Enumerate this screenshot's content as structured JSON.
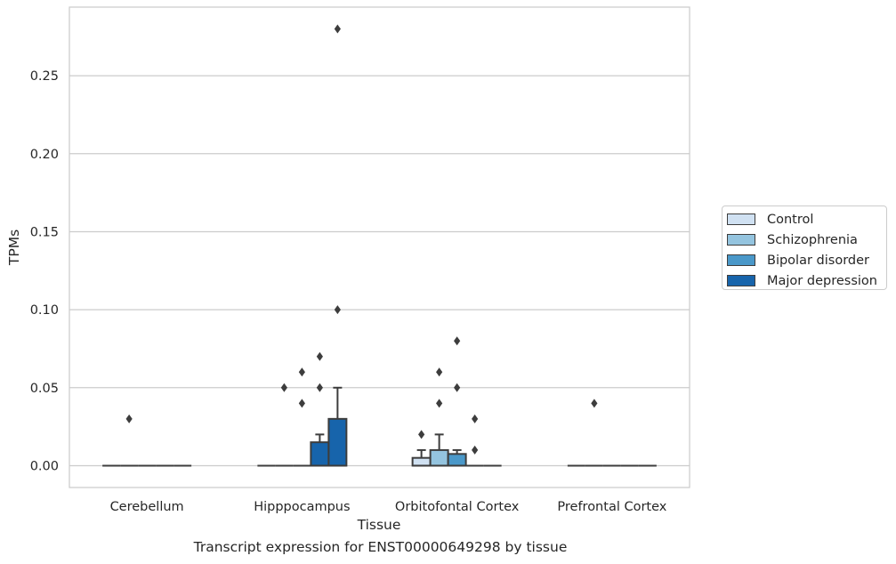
{
  "chart_data": {
    "type": "box",
    "title": "",
    "caption": "Transcript expression for ENST00000649298 by tissue",
    "xlabel": "Tissue",
    "ylabel": "TPMs",
    "ylim": [
      -0.014,
      0.294
    ],
    "yticks": [
      "0.00",
      "0.05",
      "0.10",
      "0.15",
      "0.20",
      "0.25"
    ],
    "ytick_values": [
      0,
      0.05,
      0.1,
      0.15,
      0.2,
      0.25
    ],
    "grid": "horizontal",
    "legend_position": "right",
    "categories": [
      "Cerebellum",
      "Hipppocampus",
      "Orbitofontal Cortex",
      "Prefrontal Cortex"
    ],
    "series": [
      {
        "name": "Control",
        "color": "#d0e1f2",
        "boxes": [
          {
            "q1": 0,
            "median": 0,
            "q3": 0,
            "whisker_low": 0,
            "whisker_high": 0,
            "outliers": []
          },
          {
            "q1": 0,
            "median": 0,
            "q3": 0,
            "whisker_low": 0,
            "whisker_high": 0,
            "outliers": []
          },
          {
            "q1": 0,
            "median": 0,
            "q3": 0.005,
            "whisker_low": 0,
            "whisker_high": 0.01,
            "outliers": [
              0.02
            ]
          },
          {
            "q1": 0,
            "median": 0,
            "q3": 0,
            "whisker_low": 0,
            "whisker_high": 0,
            "outliers": []
          }
        ]
      },
      {
        "name": "Schizophrenia",
        "color": "#94c4df",
        "boxes": [
          {
            "q1": 0,
            "median": 0,
            "q3": 0,
            "whisker_low": 0,
            "whisker_high": 0,
            "outliers": [
              0.03
            ]
          },
          {
            "q1": 0,
            "median": 0,
            "q3": 0,
            "whisker_low": 0,
            "whisker_high": 0,
            "outliers": [
              0.05
            ]
          },
          {
            "q1": 0,
            "median": 0,
            "q3": 0.01,
            "whisker_low": 0,
            "whisker_high": 0.02,
            "outliers": [
              0.04,
              0.06
            ]
          },
          {
            "q1": 0,
            "median": 0,
            "q3": 0,
            "whisker_low": 0,
            "whisker_high": 0,
            "outliers": [
              0.04
            ]
          }
        ]
      },
      {
        "name": "Bipolar disorder",
        "color": "#4a98c9",
        "boxes": [
          {
            "q1": 0,
            "median": 0,
            "q3": 0,
            "whisker_low": 0,
            "whisker_high": 0,
            "outliers": []
          },
          {
            "q1": 0,
            "median": 0,
            "q3": 0,
            "whisker_low": 0,
            "whisker_high": 0,
            "outliers": [
              0.04,
              0.06
            ]
          },
          {
            "q1": 0,
            "median": 0,
            "q3": 0.0075,
            "whisker_low": 0,
            "whisker_high": 0.01,
            "outliers": [
              0.05,
              0.08
            ]
          },
          {
            "q1": 0,
            "median": 0,
            "q3": 0,
            "whisker_low": 0,
            "whisker_high": 0,
            "outliers": []
          }
        ]
      },
      {
        "name": "Major depression",
        "color": "#1764ab",
        "boxes": [
          {
            "q1": 0,
            "median": 0,
            "q3": 0,
            "whisker_low": 0,
            "whisker_high": 0,
            "outliers": []
          },
          {
            "q1": 0,
            "median": 0,
            "q3": 0.015,
            "whisker_low": 0,
            "whisker_high": 0.02,
            "outliers": [
              0.05,
              0.07
            ]
          },
          {
            "q1": 0,
            "median": 0,
            "q3": 0,
            "whisker_low": 0,
            "whisker_high": 0,
            "outliers": [
              0.01,
              0.03
            ]
          },
          {
            "q1": 0,
            "median": 0,
            "q3": 0,
            "whisker_low": 0,
            "whisker_high": 0,
            "outliers": []
          }
        ]
      },
      {
        "name": "",
        "color": "#1764ab",
        "boxes": [
          {
            "q1": 0,
            "median": 0,
            "q3": 0,
            "whisker_low": 0,
            "whisker_high": 0,
            "outliers": []
          },
          {
            "q1": 0,
            "median": 0,
            "q3": 0.03,
            "whisker_low": 0,
            "whisker_high": 0.05,
            "outliers": [
              0.1,
              0.28
            ]
          },
          {
            "q1": 0,
            "median": 0,
            "q3": 0,
            "whisker_low": 0,
            "whisker_high": 0,
            "outliers": []
          },
          {
            "q1": 0,
            "median": 0,
            "q3": 0,
            "whisker_low": 0,
            "whisker_high": 0,
            "outliers": []
          }
        ]
      }
    ],
    "legend": [
      {
        "label": "Control",
        "color": "#d0e1f2"
      },
      {
        "label": "Schizophrenia",
        "color": "#94c4df"
      },
      {
        "label": "Bipolar disorder",
        "color": "#4a98c9"
      },
      {
        "label": "Major depression",
        "color": "#1764ab"
      }
    ]
  }
}
